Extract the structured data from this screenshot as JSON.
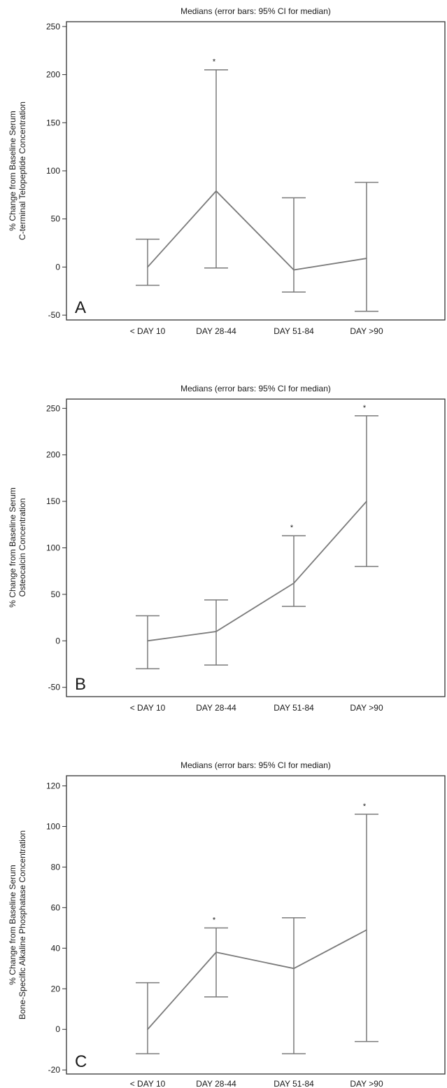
{
  "chart_data": [
    {
      "type": "line",
      "panel_label": "A",
      "title": "Medians  (error bars: 95% CI for median)",
      "ylabel": [
        "% Change from Baseline Serum",
        "C-terminal Telopeptide Concentration"
      ],
      "categories": [
        "< DAY 10",
        "DAY 28-44",
        "DAY 51-84",
        "DAY >90"
      ],
      "ylim": [
        -55,
        255
      ],
      "yticks": [
        -50,
        0,
        50,
        100,
        150,
        200,
        250
      ],
      "series": [
        {
          "values": [
            0,
            79,
            -3,
            9
          ],
          "ci_low": [
            -19,
            -1,
            -26,
            -46
          ],
          "ci_high": [
            29,
            205,
            72,
            88
          ],
          "significant": [
            false,
            true,
            false,
            false
          ]
        }
      ],
      "significance_marker": "*",
      "line_color": "#7a7a7a",
      "grid": false
    },
    {
      "type": "line",
      "panel_label": "B",
      "title": "Medians  (error bars: 95% CI for median)",
      "ylabel": [
        "% Change from Baseline Serum",
        "Osteocalcin Concentration"
      ],
      "categories": [
        "< DAY 10",
        "DAY 28-44",
        "DAY 51-84",
        "DAY >90"
      ],
      "ylim": [
        -60,
        260
      ],
      "yticks": [
        -50,
        0,
        50,
        100,
        150,
        200,
        250
      ],
      "series": [
        {
          "values": [
            0,
            10,
            62,
            150
          ],
          "ci_low": [
            -30,
            -26,
            37,
            80
          ],
          "ci_high": [
            27,
            44,
            113,
            242
          ],
          "significant": [
            false,
            false,
            true,
            true
          ]
        }
      ],
      "significance_marker": "*",
      "line_color": "#7a7a7a",
      "grid": false
    },
    {
      "type": "line",
      "panel_label": "C",
      "title": "Medians  (error bars: 95% CI for median)",
      "ylabel": [
        "% Change from Baseline Serum",
        "Bone-Specific Alkaline Phosphatase Concentration"
      ],
      "categories": [
        "< DAY 10",
        "DAY 28-44",
        "DAY 51-84",
        "DAY >90"
      ],
      "ylim": [
        -22,
        125
      ],
      "yticks": [
        -20,
        0,
        20,
        40,
        60,
        80,
        100,
        120
      ],
      "series": [
        {
          "values": [
            0,
            38,
            30,
            49
          ],
          "ci_low": [
            -12,
            16,
            -12,
            -6
          ],
          "ci_high": [
            23,
            50,
            55,
            106
          ],
          "significant": [
            false,
            true,
            false,
            true
          ]
        }
      ],
      "significance_marker": "*",
      "line_color": "#7a7a7a",
      "grid": false
    }
  ]
}
